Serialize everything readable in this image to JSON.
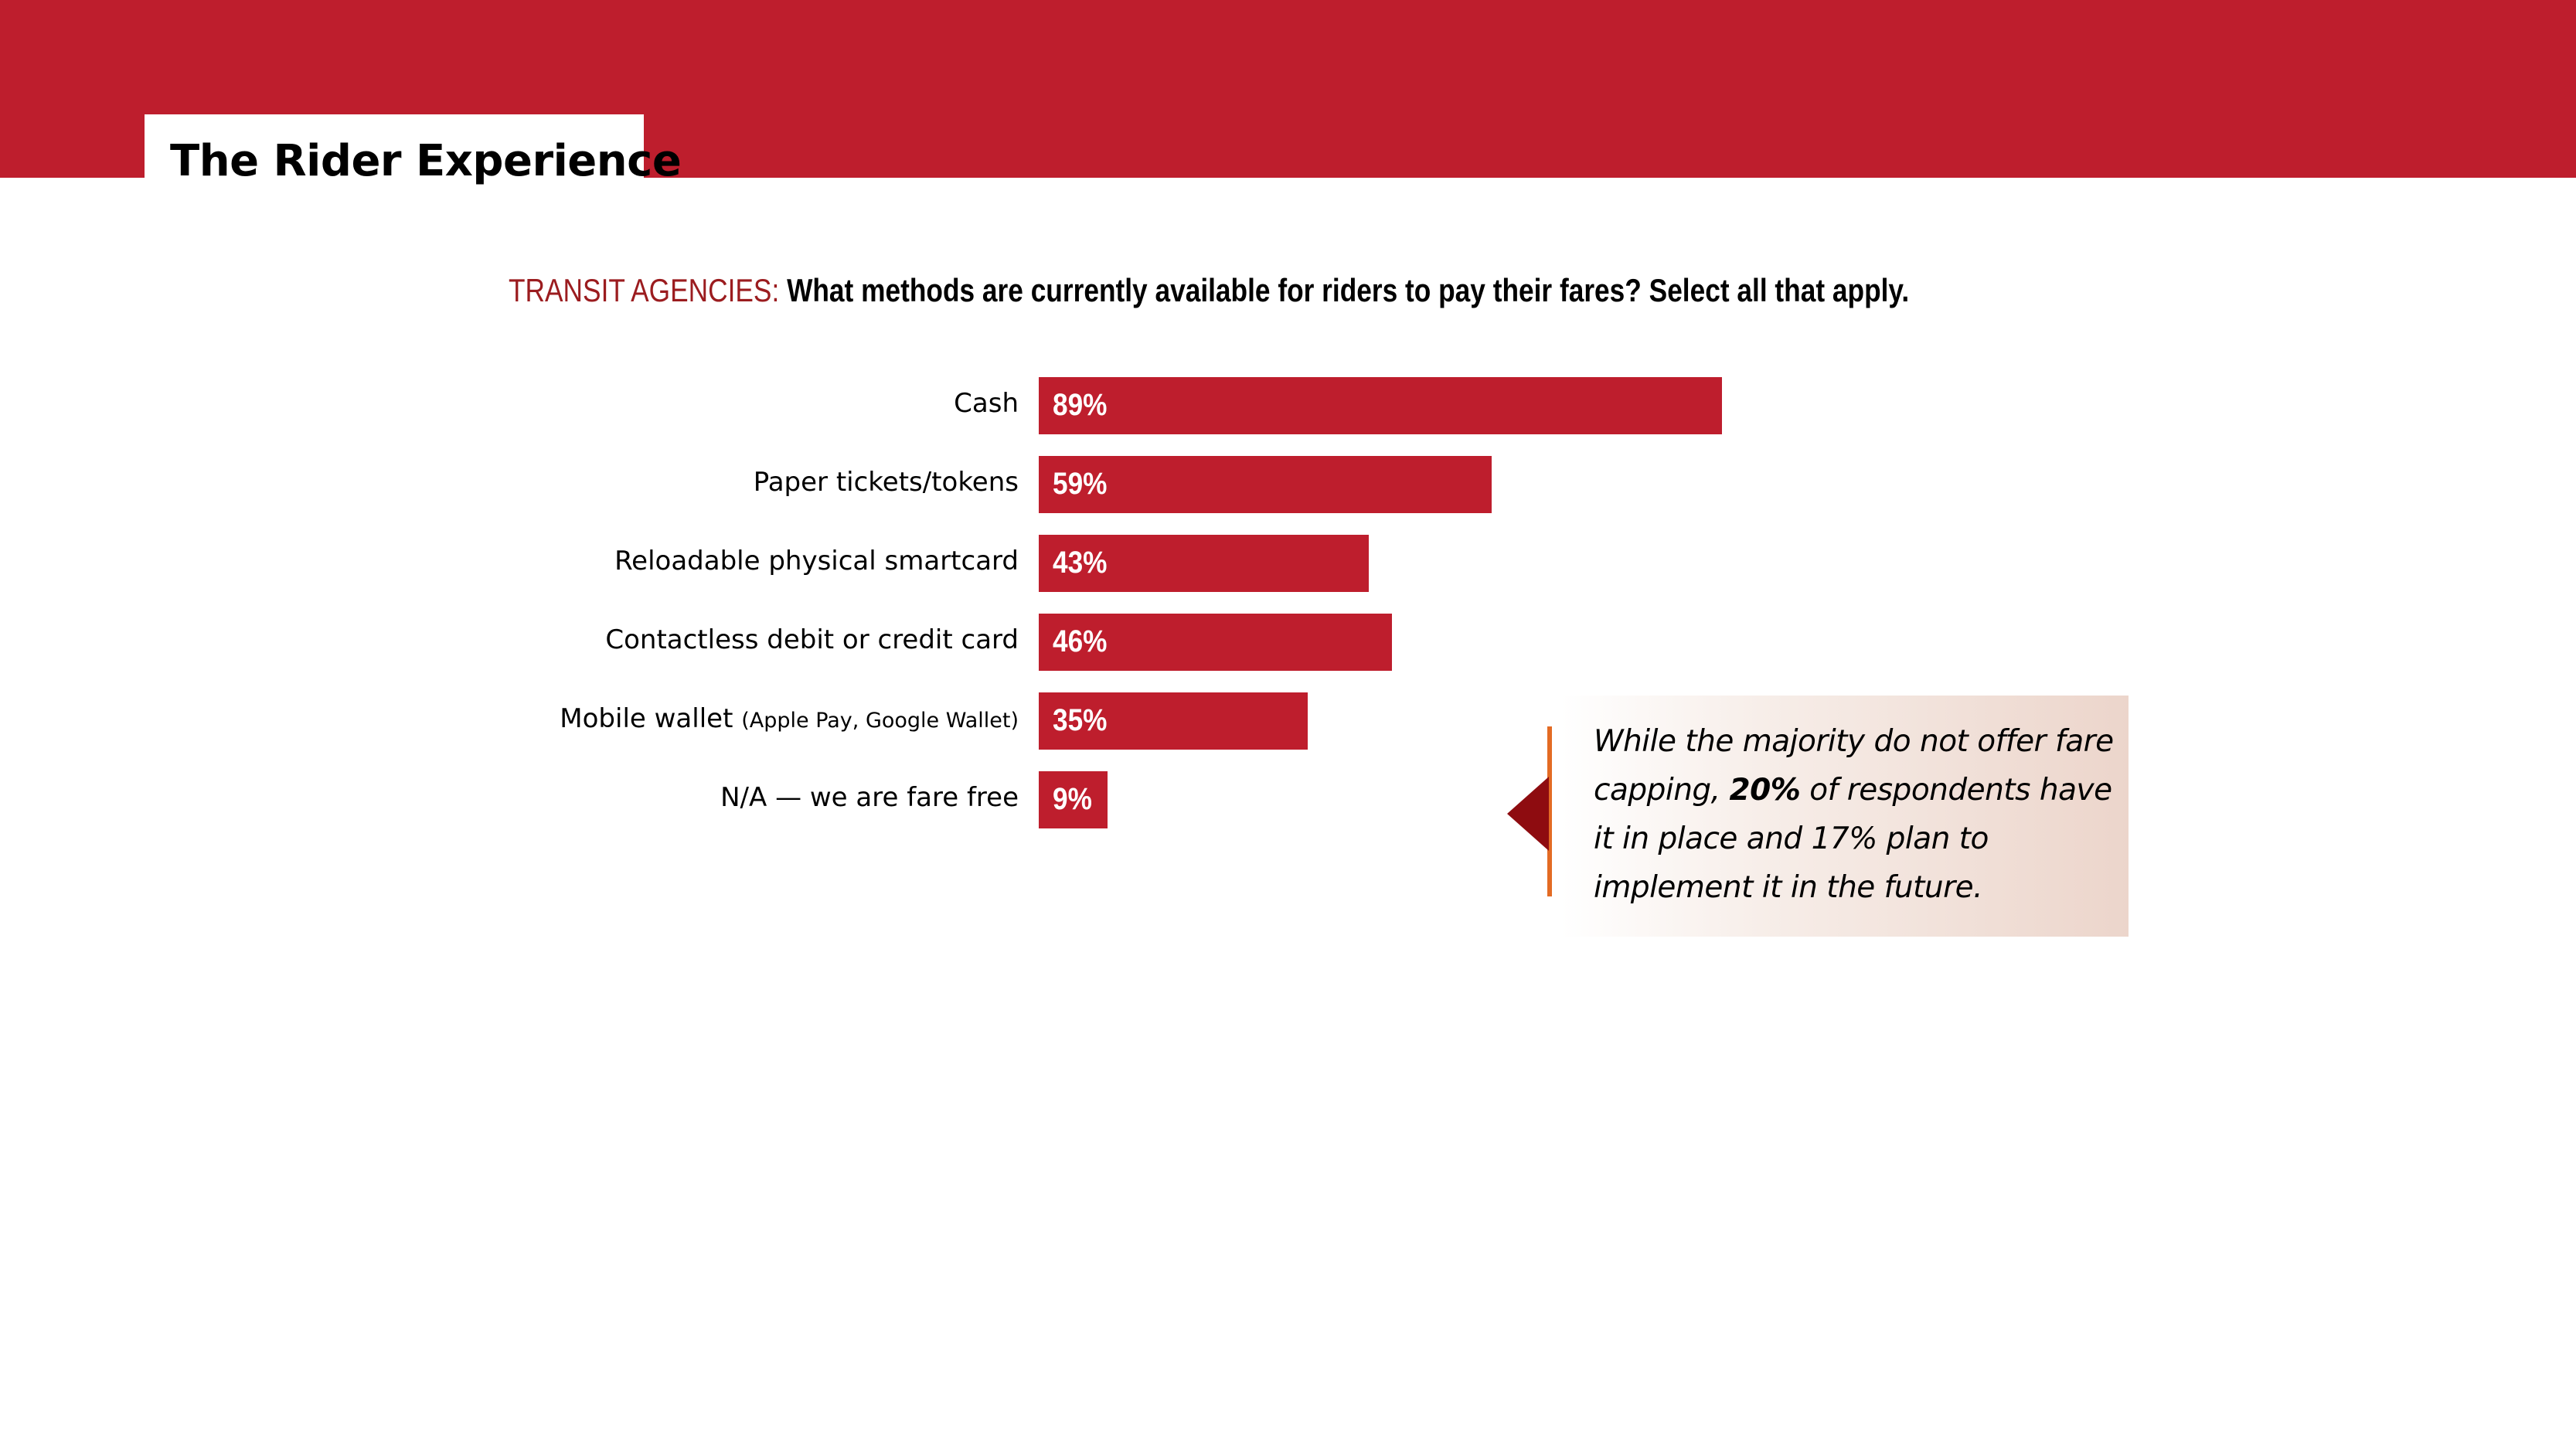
{
  "header": {
    "title": "The Rider Experience",
    "band_color": "#be1e2d"
  },
  "question": {
    "prefix": "TRANSIT AGENCIES:",
    "text": " What methods are currently available for riders to pay their fares? Select all that apply."
  },
  "chart_data": {
    "type": "bar",
    "orientation": "horizontal",
    "title": "TRANSIT AGENCIES: What methods are currently available for riders to pay their fares? Select all that apply.",
    "xlabel": "",
    "ylabel": "",
    "xlim": [
      0,
      100
    ],
    "grid": false,
    "legend": null,
    "bar_color": "#be1e2d",
    "categories": [
      "Cash",
      "Paper tickets/tokens",
      "Reloadable physical smartcard",
      "Contactless debit or credit card",
      "Mobile wallet (Apple Pay, Google Wallet)",
      "N/A — we are fare free"
    ],
    "values": [
      89,
      59,
      43,
      46,
      35,
      9
    ],
    "value_labels": [
      "89%",
      "59%",
      "43%",
      "46%",
      "35%",
      "9%"
    ]
  },
  "bars": [
    {
      "label": "Cash",
      "sub": "",
      "value": 89,
      "value_label": "89%"
    },
    {
      "label": "Paper tickets/tokens",
      "sub": "",
      "value": 59,
      "value_label": "59%"
    },
    {
      "label": "Reloadable physical smartcard",
      "sub": "",
      "value": 43,
      "value_label": "43%"
    },
    {
      "label": "Contactless debit or credit card",
      "sub": "",
      "value": 46,
      "value_label": "46%"
    },
    {
      "label": "Mobile wallet ",
      "sub": "(Apple Pay, Google Wallet)",
      "value": 35,
      "value_label": "35%"
    },
    {
      "label": "N/A — we are fare free",
      "sub": "",
      "value": 9,
      "value_label": "9%"
    }
  ],
  "callout": {
    "part1": "While the majority do not offer fare capping, ",
    "bold": "20%",
    "part2": " of respondents have it in place and 17% plan to implement it in the future.",
    "accent_line_color": "#e36b24",
    "arrow_color": "#8e0c10"
  }
}
